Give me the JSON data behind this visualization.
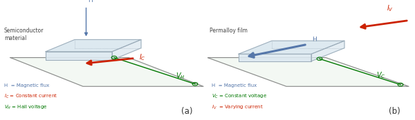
{
  "panel_a": {
    "label": "(a)",
    "material_label": "Semiconductor\nmaterial",
    "H_label": "H",
    "Ic_label": "I_C",
    "Vh_label": "V_H",
    "legend": [
      {
        "text": "H  = Magnetic flux",
        "color": "#6688bb"
      },
      {
        "text": "I_C = Constant current",
        "color": "#cc2200"
      },
      {
        "text": "V_H = Hall voltage",
        "color": "#007700"
      }
    ]
  },
  "panel_b": {
    "label": "(b)",
    "material_label": "Permalloy film",
    "H_label": "H",
    "Iv_label": "I_V",
    "Vc_label": "V_C",
    "legend": [
      {
        "text": "H  = Magnetic flux",
        "color": "#6688bb"
      },
      {
        "text": "V_C = Constant voltage",
        "color": "#007700"
      },
      {
        "text": "I_V  = Varying current",
        "color": "#cc2200"
      }
    ]
  },
  "red": "#cc2200",
  "green": "#007700",
  "blue": "#5577aa",
  "box_edge": "#9aabb8",
  "box_face": "#dce8f0",
  "plane_edge": "#888888",
  "plane_face": "#d8ead8"
}
